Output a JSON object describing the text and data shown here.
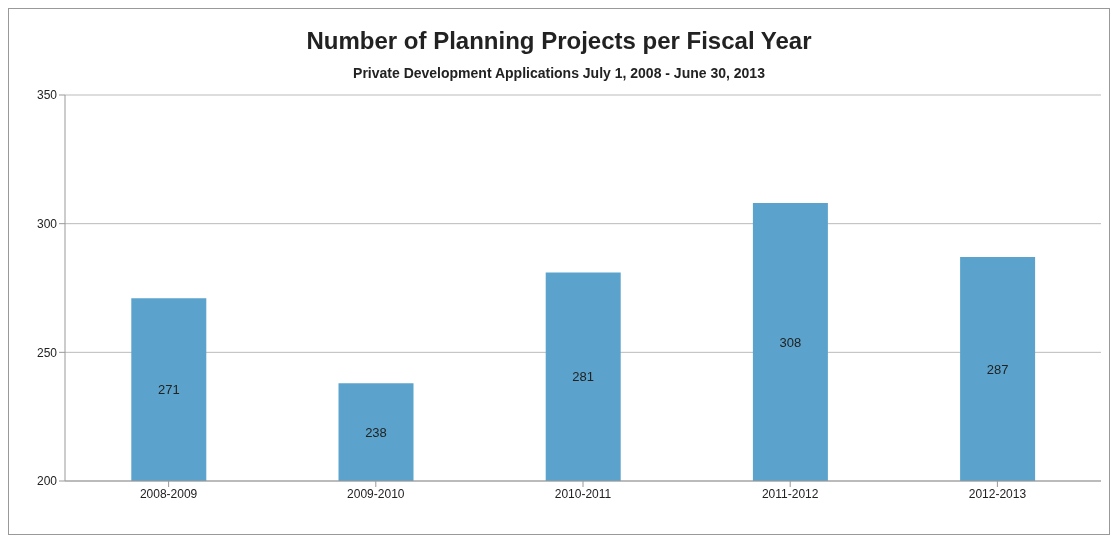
{
  "chart_data": {
    "type": "bar",
    "title": "Number of Planning Projects per Fiscal Year",
    "subtitle": "Private Development Applications July 1, 2008 - June 30, 2013",
    "categories": [
      "2008-2009",
      "2009-2010",
      "2010-2011",
      "2011-2012",
      "2012-2013"
    ],
    "values": [
      271,
      238,
      281,
      308,
      287
    ],
    "color": "#5ba3cc",
    "ylim": [
      200,
      350
    ],
    "yticks": [
      200,
      250,
      300,
      350
    ],
    "grid": "y",
    "data_labels": true
  }
}
